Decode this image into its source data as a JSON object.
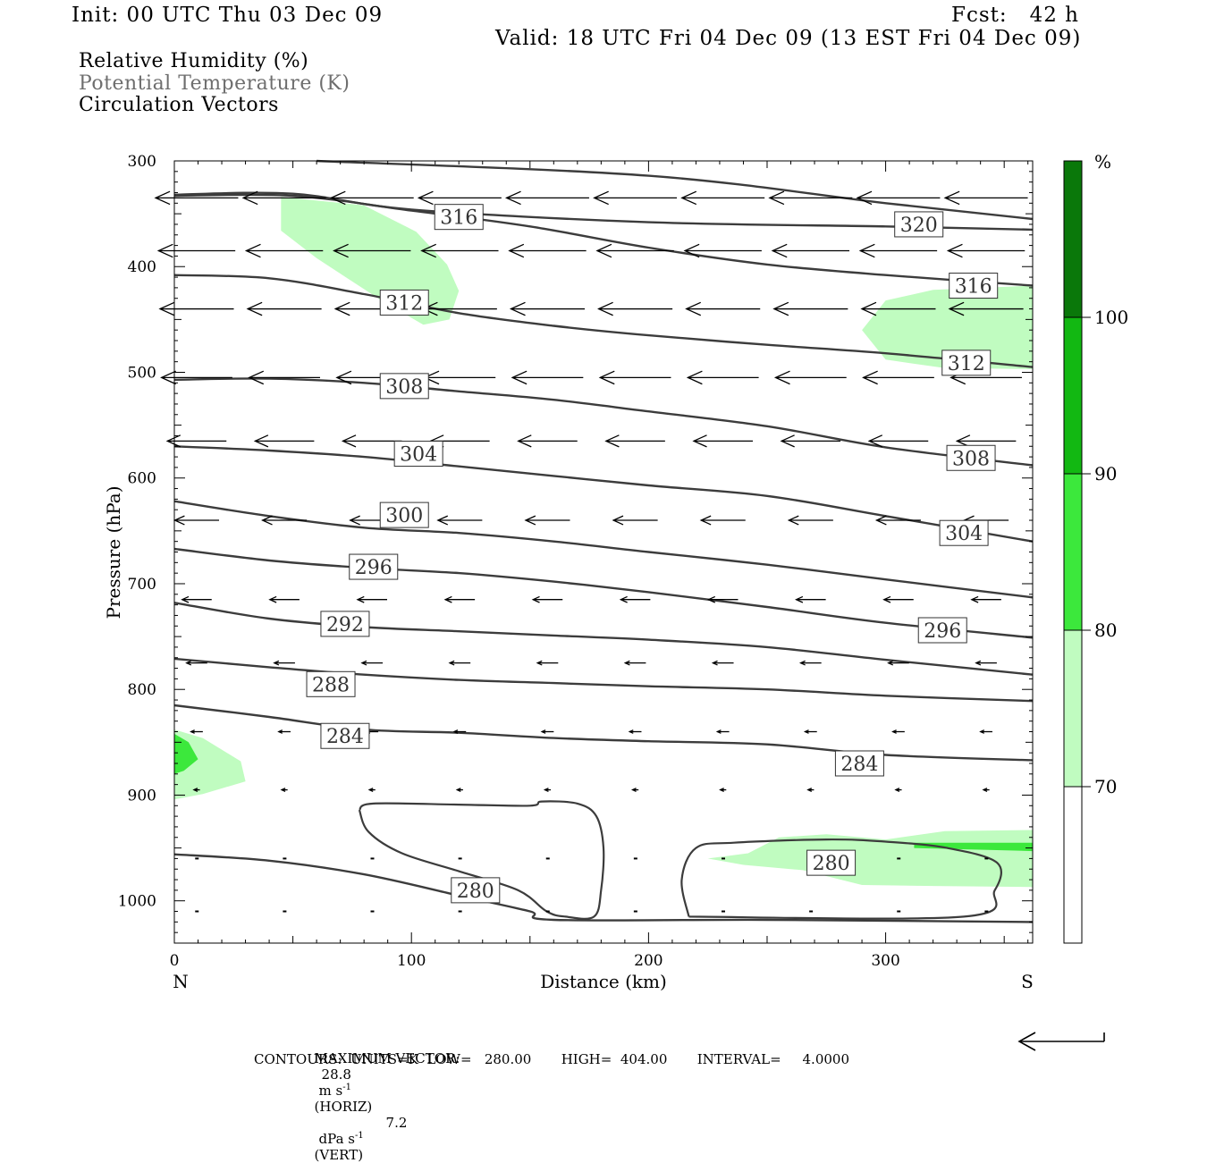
{
  "header": {
    "init": "Init: 00 UTC Thu 03 Dec 09",
    "fcst": "Fcst:   42 h",
    "valid": "Valid: 18 UTC Fri 04 Dec 09 (13 EST Fri 04 Dec 09)"
  },
  "legend": {
    "rh": "Relative Humidity (%)",
    "theta": "Potential Temperature (K)",
    "vectors": "Circulation Vectors"
  },
  "footer": {
    "maxvec_label": "MAXIMUM VECTOR:",
    "horiz_value": "28.8",
    "horiz_units": "m s",
    "horiz_tag": "(HORIZ)",
    "vert_value": "7.2",
    "vert_units": "dPa s",
    "vert_tag": "(VERT)",
    "exponent": "-1",
    "contours": "CONTOURS:  UNITS=K  LOW=   280.00       HIGH=  404.00       INTERVAL=     4.0000"
  },
  "colors": {
    "rh_70": "#c0fcc0",
    "rh_80": "#3ce83c",
    "rh_90": "#12b812",
    "rh_100": "#0a780a",
    "contour": "#3c3c3c"
  },
  "chart_data": {
    "type": "cross-section",
    "xlabel": "Distance (km)",
    "ylabel": "Pressure (hPa)",
    "xlim": [
      0,
      362
    ],
    "ylim": [
      1040,
      300
    ],
    "x_ticks": [
      "0",
      "100",
      "200",
      "300"
    ],
    "x_tick_values": [
      0,
      100,
      200,
      300
    ],
    "y_ticks": [
      "300",
      "400",
      "500",
      "600",
      "700",
      "800",
      "900",
      "1000"
    ],
    "y_tick_values": [
      300,
      400,
      500,
      600,
      700,
      800,
      900,
      1000
    ],
    "end_labels": {
      "left": "N",
      "right": "S"
    },
    "colorbar": {
      "unit": "%",
      "levels": [
        70,
        80,
        90,
        100
      ],
      "labels": [
        "70",
        "80",
        "90",
        "100"
      ]
    },
    "theta_contours": [
      {
        "level": "320",
        "points": [
          [
            60,
            300
          ],
          [
            200,
            314
          ],
          [
            300,
            340
          ],
          [
            362,
            355
          ]
        ]
      },
      {
        "level": "320",
        "points": [
          [
            0,
            332
          ],
          [
            50,
            331
          ],
          [
            100,
            346
          ],
          [
            200,
            358
          ],
          [
            300,
            362
          ],
          [
            362,
            365
          ]
        ]
      },
      {
        "level": "316",
        "points": [
          [
            0,
            333
          ],
          [
            50,
            333
          ],
          [
            100,
            347
          ],
          [
            150,
            362
          ],
          [
            200,
            382
          ],
          [
            250,
            398
          ],
          [
            300,
            408
          ],
          [
            362,
            418
          ]
        ]
      },
      {
        "level": "312",
        "points": [
          [
            0,
            408
          ],
          [
            40,
            411
          ],
          [
            80,
            426
          ],
          [
            120,
            444
          ],
          [
            160,
            456
          ],
          [
            200,
            465
          ],
          [
            250,
            474
          ],
          [
            300,
            482
          ],
          [
            362,
            495
          ]
        ]
      },
      {
        "level": "308",
        "points": [
          [
            0,
            507
          ],
          [
            40,
            506
          ],
          [
            80,
            510
          ],
          [
            120,
            518
          ],
          [
            160,
            526
          ],
          [
            200,
            537
          ],
          [
            250,
            551
          ],
          [
            300,
            571
          ],
          [
            362,
            588
          ]
        ]
      },
      {
        "level": "304",
        "points": [
          [
            0,
            570
          ],
          [
            40,
            574
          ],
          [
            80,
            580
          ],
          [
            120,
            589
          ],
          [
            160,
            598
          ],
          [
            200,
            607
          ],
          [
            250,
            617
          ],
          [
            300,
            636
          ],
          [
            362,
            660
          ]
        ]
      },
      {
        "level": "300",
        "points": [
          [
            0,
            622
          ],
          [
            40,
            636
          ],
          [
            80,
            647
          ],
          [
            120,
            652
          ],
          [
            160,
            660
          ],
          [
            200,
            670
          ],
          [
            250,
            682
          ],
          [
            300,
            696
          ],
          [
            362,
            713
          ]
        ]
      },
      {
        "level": "296",
        "points": [
          [
            0,
            667
          ],
          [
            40,
            678
          ],
          [
            80,
            685
          ],
          [
            120,
            690
          ],
          [
            160,
            698
          ],
          [
            200,
            708
          ],
          [
            250,
            722
          ],
          [
            300,
            737
          ],
          [
            362,
            751
          ]
        ]
      },
      {
        "level": "292",
        "points": [
          [
            0,
            718
          ],
          [
            40,
            733
          ],
          [
            80,
            741
          ],
          [
            120,
            745
          ],
          [
            160,
            749
          ],
          [
            200,
            753
          ],
          [
            250,
            760
          ],
          [
            300,
            772
          ],
          [
            362,
            786
          ]
        ]
      },
      {
        "level": "288",
        "points": [
          [
            0,
            771
          ],
          [
            40,
            779
          ],
          [
            80,
            786
          ],
          [
            120,
            791
          ],
          [
            160,
            794
          ],
          [
            200,
            797
          ],
          [
            250,
            800
          ],
          [
            300,
            806
          ],
          [
            362,
            811
          ]
        ]
      },
      {
        "level": "284",
        "points": [
          [
            0,
            815
          ],
          [
            40,
            826
          ],
          [
            80,
            838
          ],
          [
            120,
            841
          ],
          [
            160,
            846
          ],
          [
            200,
            849
          ],
          [
            250,
            852
          ],
          [
            300,
            862
          ],
          [
            362,
            867
          ]
        ]
      },
      {
        "level": "280",
        "points": [
          [
            0,
            956
          ],
          [
            40,
            962
          ],
          [
            80,
            975
          ],
          [
            120,
            995
          ],
          [
            150,
            1010
          ],
          [
            160,
            1018
          ],
          [
            250,
            1018
          ],
          [
            362,
            1020
          ]
        ]
      }
    ],
    "contour_labels": [
      {
        "text": "316",
        "x": 120,
        "p": 353
      },
      {
        "text": "320",
        "x": 314,
        "p": 360
      },
      {
        "text": "316",
        "x": 337,
        "p": 418
      },
      {
        "text": "312",
        "x": 97,
        "p": 434
      },
      {
        "text": "312",
        "x": 334,
        "p": 491
      },
      {
        "text": "308",
        "x": 97,
        "p": 513
      },
      {
        "text": "308",
        "x": 336,
        "p": 581
      },
      {
        "text": "304",
        "x": 103,
        "p": 577
      },
      {
        "text": "304",
        "x": 333,
        "p": 652
      },
      {
        "text": "300",
        "x": 97,
        "p": 635
      },
      {
        "text": "296",
        "x": 84,
        "p": 684
      },
      {
        "text": "296",
        "x": 324,
        "p": 744
      },
      {
        "text": "292",
        "x": 72,
        "p": 738
      },
      {
        "text": "288",
        "x": 66,
        "p": 795
      },
      {
        "text": "284",
        "x": 72,
        "p": 844
      },
      {
        "text": "284",
        "x": 289,
        "p": 870
      },
      {
        "text": "280",
        "x": 277,
        "p": 964
      },
      {
        "text": "280",
        "x": 127,
        "p": 990
      }
    ],
    "rh_regions": [
      {
        "level": 70,
        "points": [
          [
            45,
            334
          ],
          [
            80,
            342
          ],
          [
            102,
            367
          ],
          [
            115,
            398
          ],
          [
            120,
            423
          ],
          [
            116,
            450
          ],
          [
            105,
            455
          ],
          [
            88,
            433
          ],
          [
            60,
            392
          ],
          [
            45,
            366
          ]
        ]
      },
      {
        "level": 70,
        "points": [
          [
            362,
            418
          ],
          [
            320,
            422
          ],
          [
            300,
            432
          ],
          [
            290,
            460
          ],
          [
            300,
            488
          ],
          [
            325,
            496
          ],
          [
            362,
            497
          ]
        ]
      },
      {
        "level": 70,
        "points": [
          [
            0,
            838
          ],
          [
            12,
            846
          ],
          [
            28,
            868
          ],
          [
            30,
            887
          ],
          [
            12,
            899
          ],
          [
            0,
            904
          ]
        ]
      },
      {
        "level": 80,
        "points": [
          [
            0,
            842
          ],
          [
            6,
            850
          ],
          [
            10,
            866
          ],
          [
            4,
            877
          ],
          [
            0,
            880
          ]
        ]
      },
      {
        "level": 70,
        "points": [
          [
            225,
            960
          ],
          [
            242,
            955
          ],
          [
            255,
            940
          ],
          [
            275,
            937
          ],
          [
            300,
            942
          ],
          [
            325,
            934
          ],
          [
            362,
            933
          ],
          [
            362,
            987
          ],
          [
            320,
            986
          ],
          [
            290,
            985
          ],
          [
            265,
            971
          ],
          [
            240,
            966
          ]
        ]
      },
      {
        "level": 80,
        "points": [
          [
            312,
            945
          ],
          [
            362,
            945
          ],
          [
            362,
            953
          ],
          [
            312,
            950
          ]
        ]
      }
    ],
    "closed_contours_280": [
      {
        "points": [
          [
            78,
            914
          ],
          [
            84,
            908
          ],
          [
            120,
            909
          ],
          [
            150,
            910
          ],
          [
            155,
            906
          ],
          [
            170,
            908
          ],
          [
            178,
            920
          ],
          [
            181,
            950
          ],
          [
            180,
            990
          ],
          [
            177,
            1015
          ],
          [
            165,
            1015
          ],
          [
            157,
            1010
          ],
          [
            145,
            990
          ],
          [
            120,
            972
          ],
          [
            96,
            955
          ],
          [
            82,
            935
          ]
        ]
      },
      {
        "points": [
          [
            217,
            1015
          ],
          [
            214,
            980
          ],
          [
            220,
            950
          ],
          [
            236,
            945
          ],
          [
            275,
            942
          ],
          [
            300,
            944
          ],
          [
            326,
            950
          ],
          [
            347,
            964
          ],
          [
            346,
            990
          ],
          [
            333,
            1015
          ]
        ]
      }
    ],
    "vector_scale_px_per_unit": 3.3,
    "vector_rows": [
      {
        "p": 335,
        "u": -28,
        "w": 0
      },
      {
        "p": 385,
        "u": -26,
        "w": 0
      },
      {
        "p": 440,
        "u": -25,
        "w": 0
      },
      {
        "p": 505,
        "u": -24,
        "w": 0
      },
      {
        "p": 565,
        "u": -20,
        "w": 0
      },
      {
        "p": 640,
        "u": -15,
        "w": 0
      },
      {
        "p": 715,
        "u": -10,
        "w": 0
      },
      {
        "p": 775,
        "u": -7,
        "w": 0
      },
      {
        "p": 840,
        "u": -4,
        "w": 0
      },
      {
        "p": 895,
        "u": -2,
        "w": 0
      },
      {
        "p": 960,
        "u": -1,
        "w": 0
      },
      {
        "p": 1010,
        "u": -1,
        "w": 0
      }
    ],
    "vector_x_positions": [
      5,
      42,
      79,
      116,
      153,
      190,
      227,
      264,
      301,
      338
    ]
  }
}
